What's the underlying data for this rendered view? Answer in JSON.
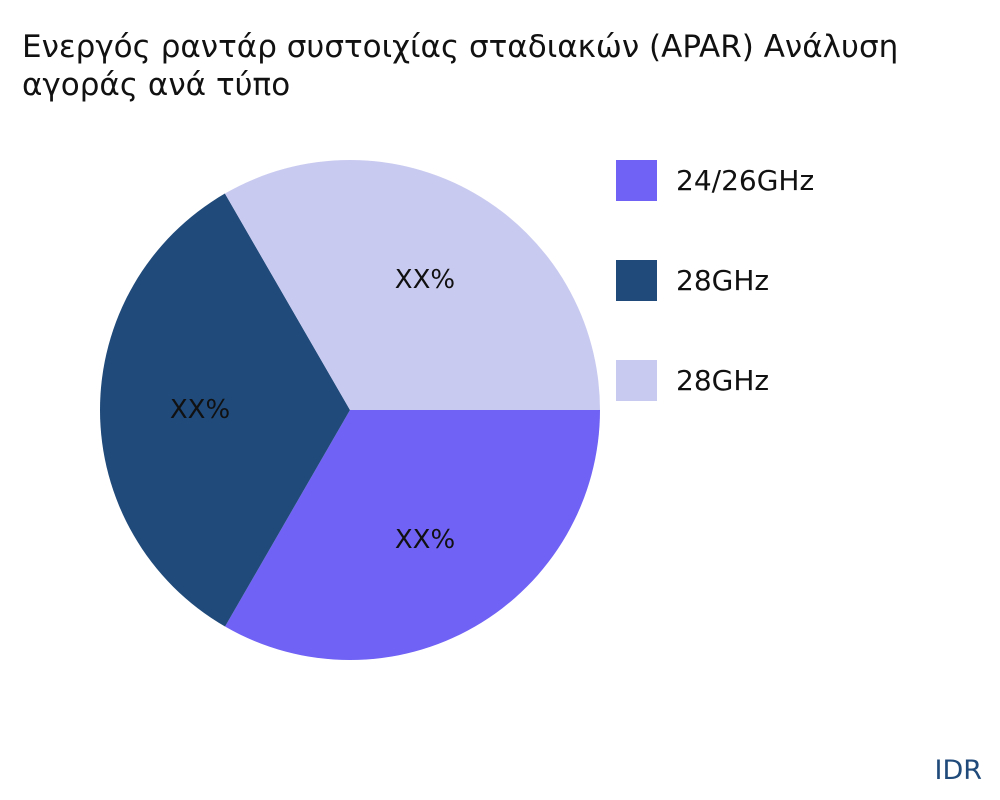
{
  "title": "Ενεργός ραντάρ συστοιχίας σταδιακών (APAR) Ανάλυση αγοράς ανά τύπο",
  "watermark": "IDR",
  "chart_data": {
    "type": "pie",
    "title": "Ενεργός ραντάρ συστοιχίας σταδιακών (APAR) Ανάλυση αγοράς ανά τύπο",
    "slices": [
      {
        "label": "24/26GHz",
        "value": 33.33,
        "display": "XX%",
        "color": "#6f62f4"
      },
      {
        "label": "28GHz",
        "value": 33.33,
        "display": "XX%",
        "color": "#1f4a7a"
      },
      {
        "label": "28GHz",
        "value": 33.34,
        "display": "XX%",
        "color": "#c9caf0"
      }
    ],
    "legend_position": "right"
  }
}
